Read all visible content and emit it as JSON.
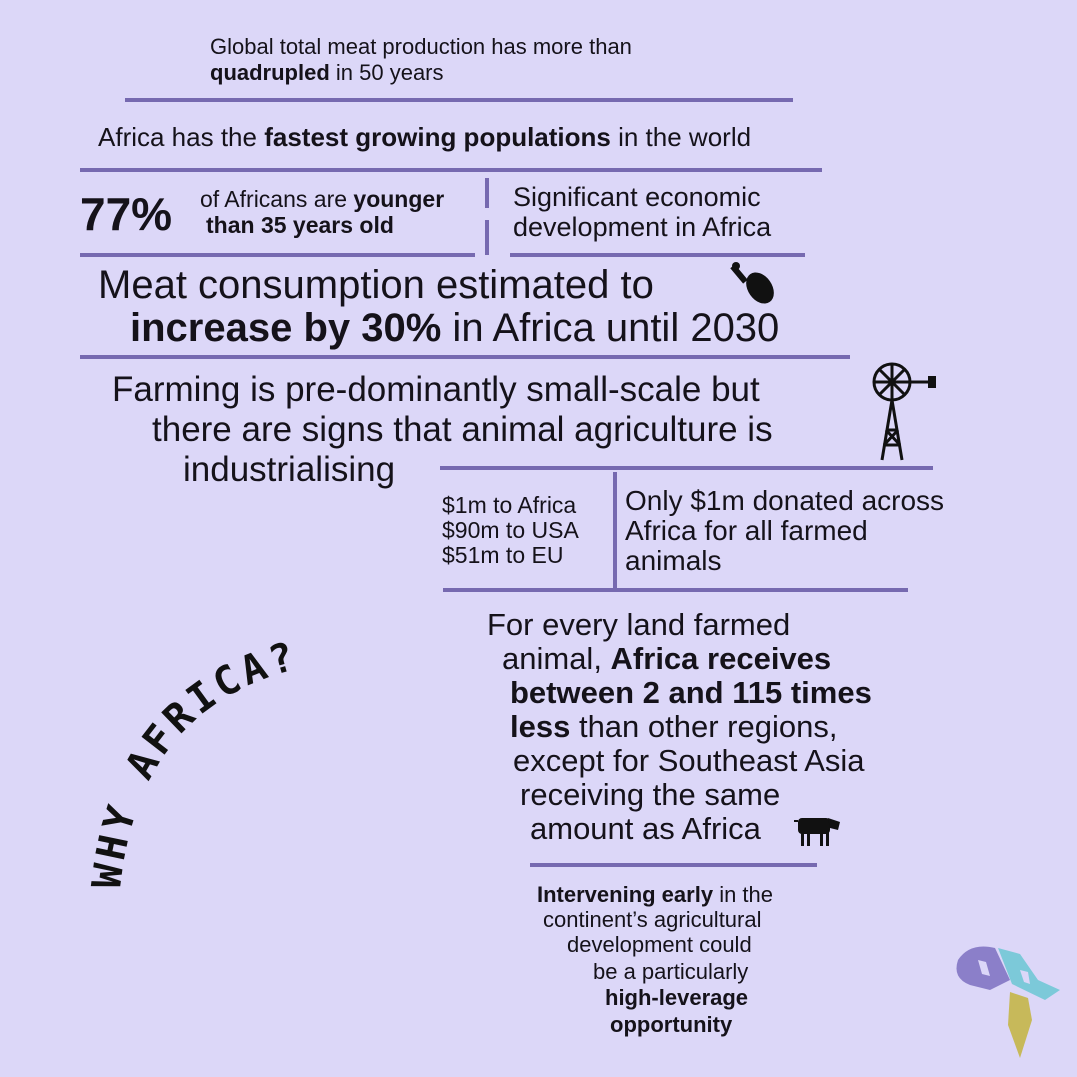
{
  "blocks": [
    {
      "lines": [
        [
          "Global total meat production has more than"
        ],
        [
          "quadrupled",
          " in 50 years"
        ]
      ]
    },
    {
      "lines": [
        [
          "Africa has the ",
          "fastest growing populations",
          " in the world"
        ]
      ]
    },
    {
      "stat": "77%",
      "lines": [
        [
          "of Africans are ",
          "younger"
        ],
        [
          "than 35 years old"
        ]
      ]
    },
    {
      "lines": [
        [
          "Significant economic"
        ],
        [
          "development in Africa"
        ]
      ]
    },
    {
      "lines": [
        [
          "Meat consumption estimated to"
        ],
        [
          "increase by 30%",
          " in Africa until 2030"
        ]
      ]
    },
    {
      "lines": [
        [
          "Farming is pre-dominantly small-scale but"
        ],
        [
          "there are signs that animal agriculture is"
        ],
        [
          "industrialising"
        ]
      ]
    },
    {
      "lines": [
        [
          "$1m to Africa"
        ],
        [
          "$90m to USA"
        ],
        [
          "$51m to EU"
        ]
      ]
    },
    {
      "lines": [
        [
          "Only $1m donated across"
        ],
        [
          "Africa for all farmed"
        ],
        [
          "animals"
        ]
      ]
    },
    {
      "lines": [
        [
          "For every land farmed"
        ],
        [
          "animal, ",
          "Africa receives"
        ],
        [
          "between 2 and 115 times"
        ],
        [
          "less",
          " than other regions,"
        ],
        [
          "except for Southeast Asia"
        ],
        [
          "receiving the same"
        ],
        [
          "amount as Africa"
        ]
      ]
    },
    {
      "lines": [
        [
          "Intervening early",
          " in the"
        ],
        [
          "continent’s agricultural"
        ],
        [
          "development could"
        ],
        [
          "be a particularly"
        ],
        [
          "high-leverage"
        ],
        [
          "opportunity"
        ]
      ]
    }
  ],
  "side_title": "WHY AFRICA?"
}
